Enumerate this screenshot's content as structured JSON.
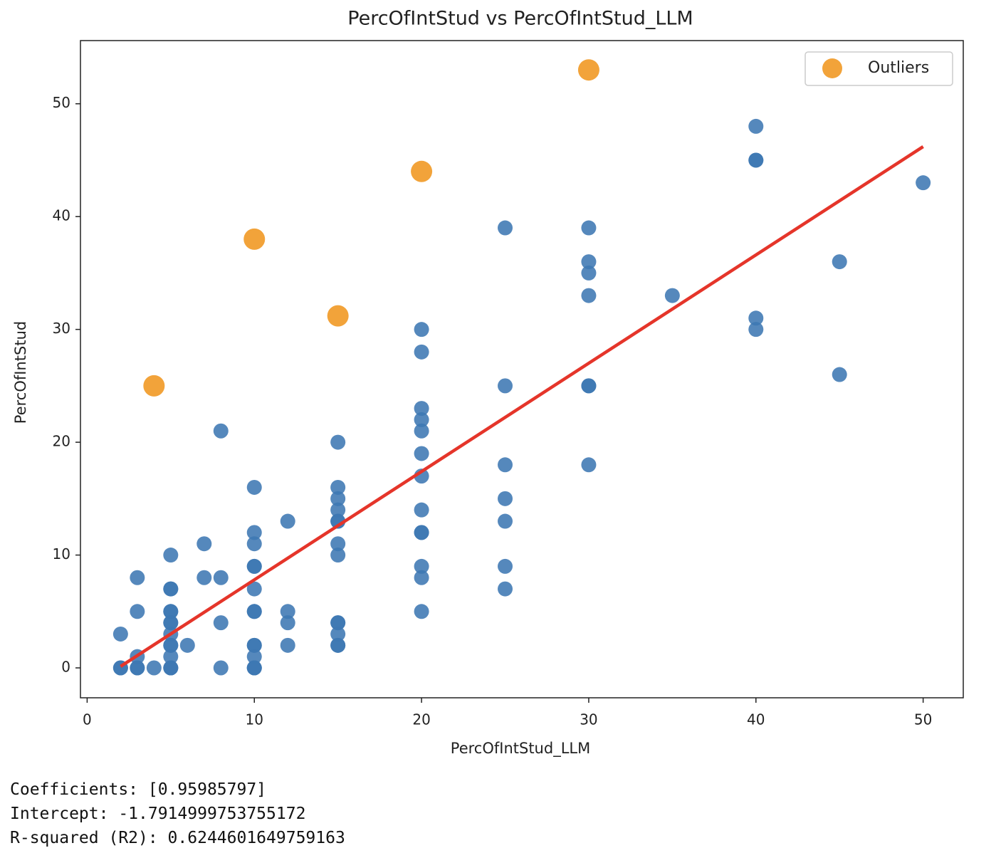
{
  "chart_data": {
    "type": "scatter",
    "title": "PercOfIntStud vs PercOfIntStud_LLM",
    "xlabel": "PercOfIntStud_LLM",
    "ylabel": "PercOfIntStud",
    "xlim": [
      -0.4,
      52.4
    ],
    "ylim": [
      -2.65,
      55.6
    ],
    "xticks": [
      0,
      10,
      20,
      30,
      40,
      50
    ],
    "yticks": [
      0,
      10,
      20,
      30,
      40,
      50
    ],
    "legend": "upper right",
    "series": [
      {
        "color": "#3d78b3",
        "x": [
          2,
          2,
          2,
          3,
          3,
          3,
          3,
          3,
          4,
          5,
          5,
          5,
          5,
          5,
          5,
          5,
          5,
          5,
          5,
          5,
          5,
          5,
          5,
          6,
          7,
          7,
          8,
          8,
          8,
          8,
          10,
          10,
          10,
          10,
          10,
          10,
          10,
          10,
          10,
          10,
          10,
          10,
          10,
          10,
          12,
          12,
          12,
          12,
          15,
          15,
          15,
          15,
          15,
          15,
          15,
          15,
          15,
          15,
          15,
          15,
          15,
          20,
          20,
          20,
          20,
          20,
          20,
          20,
          20,
          20,
          20,
          20,
          20,
          20,
          25,
          25,
          25,
          25,
          25,
          25,
          25,
          30,
          30,
          30,
          30,
          30,
          30,
          30,
          35,
          40,
          40,
          40,
          40,
          40,
          45,
          45,
          50
        ],
        "values": [
          3,
          0,
          0,
          8,
          5,
          1,
          0,
          0,
          0,
          10,
          7,
          7,
          5,
          5,
          4,
          4,
          3,
          2,
          2,
          1,
          0,
          0,
          0,
          2,
          11,
          8,
          21,
          8,
          4,
          0,
          16,
          12,
          11,
          9,
          9,
          7,
          5,
          5,
          2,
          2,
          1,
          0,
          0,
          0,
          13,
          5,
          4,
          2,
          20,
          16,
          15,
          14,
          13,
          13,
          11,
          10,
          4,
          4,
          3,
          2,
          2,
          30,
          28,
          23,
          22,
          21,
          19,
          17,
          14,
          12,
          12,
          9,
          8,
          5,
          39,
          25,
          18,
          15,
          13,
          9,
          7,
          39,
          36,
          35,
          33,
          25,
          25,
          18,
          33,
          48,
          45,
          45,
          31,
          30,
          36,
          26,
          43
        ]
      },
      {
        "name": "Outliers",
        "color": "#f2a33a",
        "x": [
          4,
          10,
          15,
          20,
          30
        ],
        "values": [
          25,
          38,
          31.2,
          44,
          53
        ]
      }
    ],
    "fit": {
      "color": "#e5352a",
      "x": [
        2,
        50
      ],
      "values": [
        0.13,
        46.2
      ]
    }
  },
  "output_lines": [
    "Coefficients: [0.95985797]",
    "Intercept: -1.7914999753755172",
    "R-squared (R2): 0.6244601649759163"
  ]
}
